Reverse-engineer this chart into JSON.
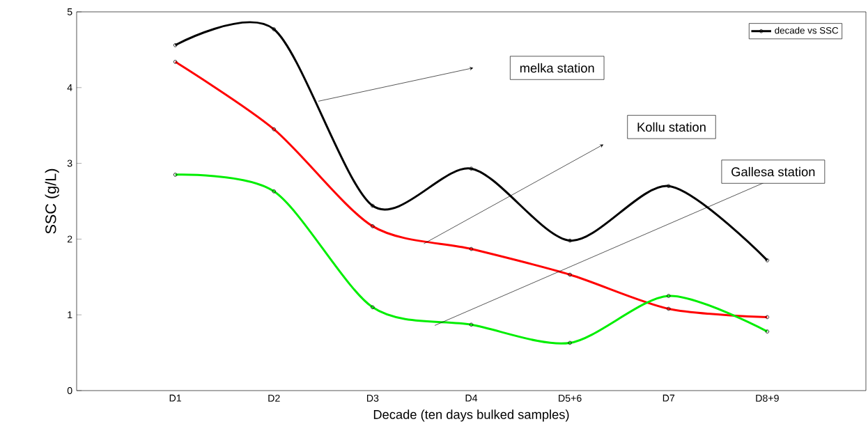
{
  "chart_data": {
    "type": "line",
    "xlabel": "Decade (ten days bulked samples)",
    "ylabel": "SSC (g/L)",
    "categories": [
      "D1",
      "D2",
      "D3",
      "D4",
      "D5+6",
      "D7",
      "D8+9"
    ],
    "series": [
      {
        "name": "decade vs SSC",
        "color": "#000000",
        "values": [
          4.56,
          4.77,
          2.44,
          2.93,
          1.98,
          2.7,
          1.72
        ]
      },
      {
        "color": "#ff0000",
        "values": [
          4.34,
          3.45,
          2.17,
          1.87,
          1.53,
          1.08,
          0.97
        ]
      },
      {
        "color": "#00ee00",
        "values": [
          2.85,
          2.63,
          1.1,
          0.87,
          0.63,
          1.25,
          0.78
        ]
      }
    ],
    "ylim": [
      0,
      5
    ],
    "yticks": [
      0,
      1,
      2,
      3,
      4,
      5
    ],
    "legend": "top right",
    "marker": "circle",
    "line_style": "solid",
    "annotations": [
      "melka station",
      "Kollu station",
      "Gallesa station"
    ]
  }
}
